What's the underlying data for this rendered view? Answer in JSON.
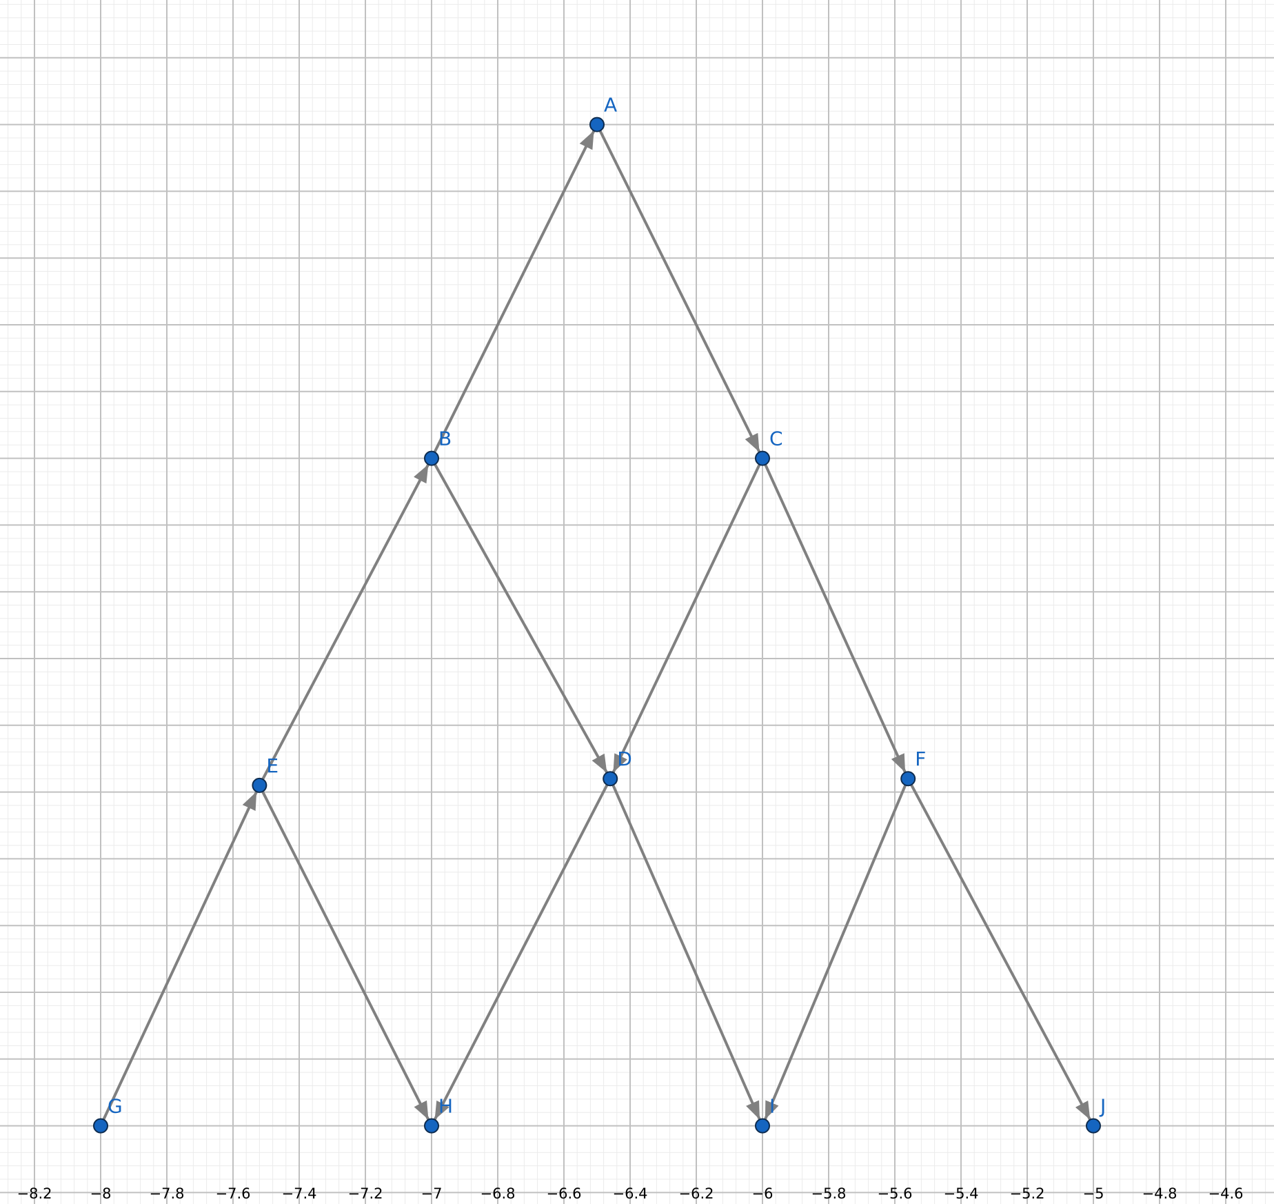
{
  "graph": {
    "x_axis": {
      "range": [
        -8.3,
        -4.45
      ],
      "tick_labels": [
        "−8.2",
        "−8",
        "−7.8",
        "−7.6",
        "−7.4",
        "−7.2",
        "−7",
        "−6.8",
        "−6.6",
        "−6.4",
        "−6.2",
        "−6",
        "−5.8",
        "−5.6",
        "−5.4",
        "−5.2",
        "−5",
        "−4.8",
        "−4.6"
      ],
      "ticks": [
        -8.2,
        -8,
        -7.8,
        -7.6,
        -7.4,
        -7.2,
        -7,
        -6.8,
        -6.6,
        -6.4,
        -6.2,
        -6,
        -5.8,
        -5.6,
        -5.4,
        -5.2,
        -5,
        -4.8,
        -4.6
      ]
    },
    "grid": true,
    "colors": {
      "point_fill": "#1565c0",
      "point_stroke": "#0d2b4e",
      "label": "#1565c0",
      "edge": "#808080",
      "major_grid": "#c0c0c0",
      "minor_grid": "#ebebeb"
    },
    "points": [
      {
        "name": "A",
        "x": -6.5,
        "y": 8
      },
      {
        "name": "B",
        "x": -7,
        "y": 3
      },
      {
        "name": "C",
        "x": -6,
        "y": 3
      },
      {
        "name": "D",
        "x": -6.46,
        "y": -1.8
      },
      {
        "name": "E",
        "x": -7.52,
        "y": -1.9
      },
      {
        "name": "F",
        "x": -5.56,
        "y": -1.8
      },
      {
        "name": "G",
        "x": -8,
        "y": -7
      },
      {
        "name": "H",
        "x": -7,
        "y": -7
      },
      {
        "name": "I",
        "x": -6,
        "y": -7
      },
      {
        "name": "J",
        "x": -5,
        "y": -7
      }
    ],
    "edges": [
      {
        "from": "B",
        "to": "A"
      },
      {
        "from": "A",
        "to": "C"
      },
      {
        "from": "E",
        "to": "B"
      },
      {
        "from": "B",
        "to": "D"
      },
      {
        "from": "C",
        "to": "D"
      },
      {
        "from": "C",
        "to": "F"
      },
      {
        "from": "G",
        "to": "E"
      },
      {
        "from": "E",
        "to": "H"
      },
      {
        "from": "D",
        "to": "H"
      },
      {
        "from": "D",
        "to": "I"
      },
      {
        "from": "F",
        "to": "I"
      },
      {
        "from": "F",
        "to": "J"
      }
    ]
  }
}
